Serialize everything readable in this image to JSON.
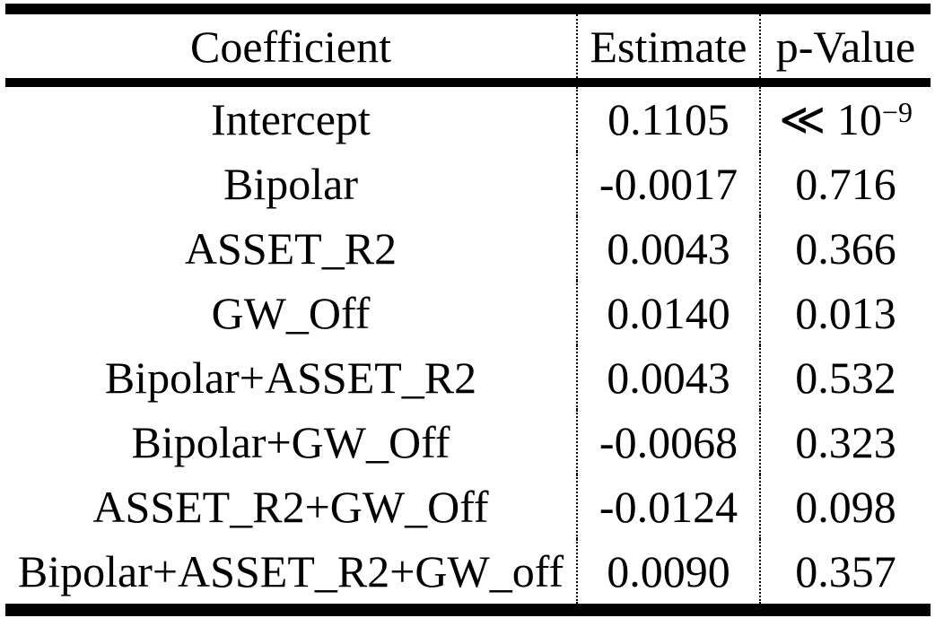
{
  "colors": {
    "text": "#000000",
    "background": "#ffffff",
    "rules": "#000000"
  },
  "table": {
    "columns": [
      {
        "label": "Coefficient"
      },
      {
        "label": "Estimate"
      },
      {
        "label": "p-Value"
      }
    ],
    "rows": [
      {
        "coefficient": "Intercept",
        "estimate": "0.1105",
        "p_value": "≪ 10",
        "p_value_sup": "−9"
      },
      {
        "coefficient": "Bipolar",
        "estimate": "-0.0017",
        "p_value": "0.716",
        "p_value_sup": ""
      },
      {
        "coefficient": "ASSET_R2",
        "estimate": "0.0043",
        "p_value": "0.366",
        "p_value_sup": ""
      },
      {
        "coefficient": "GW_Off",
        "estimate": "0.0140",
        "p_value": "0.013",
        "p_value_sup": ""
      },
      {
        "coefficient": "Bipolar+ASSET_R2",
        "estimate": "0.0043",
        "p_value": "0.532",
        "p_value_sup": ""
      },
      {
        "coefficient": "Bipolar+GW_Off",
        "estimate": "-0.0068",
        "p_value": "0.323",
        "p_value_sup": ""
      },
      {
        "coefficient": "ASSET_R2+GW_Off",
        "estimate": "-0.0124",
        "p_value": "0.098",
        "p_value_sup": ""
      },
      {
        "coefficient": "Bipolar+ASSET_R2+GW_off",
        "estimate": "0.0090",
        "p_value": "0.357",
        "p_value_sup": ""
      }
    ]
  }
}
